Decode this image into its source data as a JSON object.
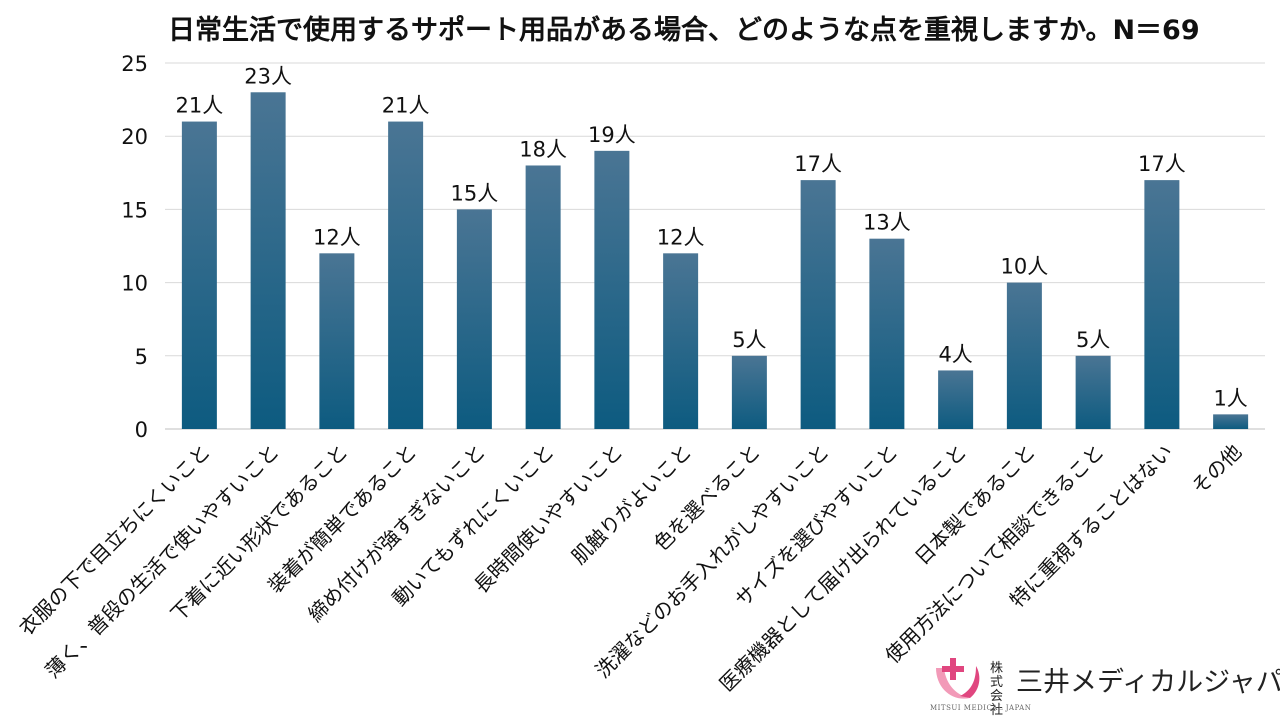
{
  "chart_data": {
    "type": "bar",
    "title": "日常生活で使用するサポート用品がある場合、どのような点を重視しますか。N＝69",
    "categories": [
      "衣服の下で目立ちにくいこと",
      "薄く、普段の生活で使いやすいこと",
      "下着に近い形状であること",
      "装着が簡単であること",
      "締め付けが強すぎないこと",
      "動いてもずれにくいこと",
      "長時間使いやすいこと",
      "肌触りがよいこと",
      "色を選べること",
      "洗濯などのお手入れがしやすいこと",
      "サイズを選びやすいこと",
      "医療機器として届け出られていること",
      "日本製であること",
      "使用方法について相談できること",
      "特に重視することはない",
      "その他"
    ],
    "values": [
      21,
      23,
      12,
      21,
      15,
      18,
      19,
      12,
      5,
      17,
      13,
      4,
      10,
      5,
      17,
      1
    ],
    "data_labels": [
      "21人",
      "23人",
      "12人",
      "21人",
      "15人",
      "18人",
      "19人",
      "12人",
      "5人",
      "17人",
      "13人",
      "4人",
      "10人",
      "5人",
      "17人",
      "1人"
    ],
    "ylim": [
      0,
      25
    ],
    "yticks": [
      0,
      5,
      10,
      15,
      20,
      25
    ],
    "grid": true,
    "legend": "none",
    "colors": {
      "bar_top": "#4a7594",
      "bar_bottom": "#0d5b80",
      "grid": "#d9d9d9"
    }
  },
  "logo": {
    "prefix": "株式会社",
    "name": "三井メディカルジャパン",
    "small_text": "MITSUI MEDICAL JAPAN",
    "color_pink": "#e0467f",
    "color_pink_light": "#f29ab8"
  }
}
